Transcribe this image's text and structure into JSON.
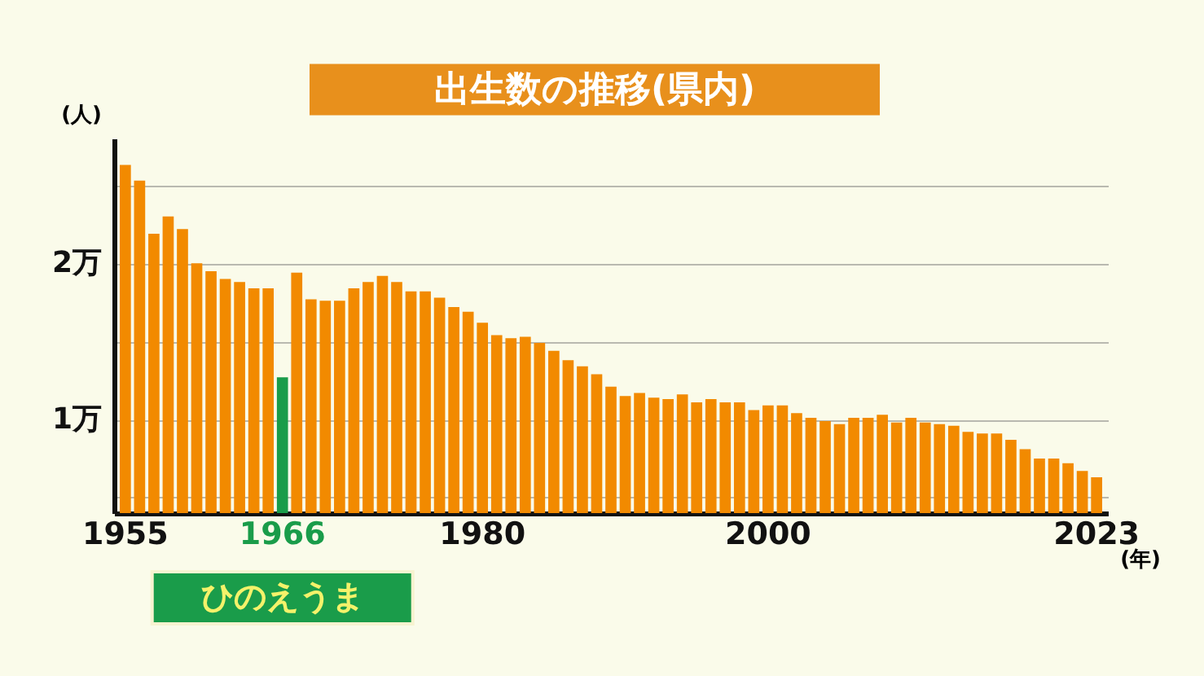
{
  "chart_data": {
    "type": "bar",
    "title": "出生数の推移(県内)",
    "ylabel": "(人)",
    "xlabel": "(年)",
    "categories": [
      "1955",
      null,
      null,
      null,
      null,
      null,
      null,
      null,
      null,
      null,
      null,
      "1966",
      null,
      null,
      null,
      null,
      null,
      null,
      null,
      null,
      null,
      null,
      null,
      null,
      null,
      "1980",
      null,
      null,
      null,
      null,
      null,
      null,
      null,
      null,
      null,
      null,
      null,
      null,
      null,
      null,
      null,
      null,
      null,
      null,
      null,
      "2000",
      null,
      null,
      null,
      null,
      null,
      null,
      null,
      null,
      null,
      null,
      null,
      null,
      null,
      null,
      null,
      null,
      null,
      null,
      null,
      null,
      null,
      null,
      "2023"
    ],
    "values": [
      2.63,
      2.53,
      2.19,
      2.3,
      2.22,
      2.0,
      1.95,
      1.9,
      1.88,
      1.84,
      1.84,
      1.27,
      1.94,
      1.77,
      1.76,
      1.76,
      1.84,
      1.88,
      1.92,
      1.88,
      1.82,
      1.82,
      1.78,
      1.72,
      1.69,
      1.62,
      1.54,
      1.52,
      1.53,
      1.49,
      1.44,
      1.38,
      1.34,
      1.29,
      1.21,
      1.15,
      1.17,
      1.14,
      1.13,
      1.16,
      1.11,
      1.13,
      1.11,
      1.11,
      1.06,
      1.09,
      1.09,
      1.04,
      1.01,
      0.99,
      0.97,
      1.01,
      1.01,
      1.03,
      0.98,
      1.01,
      0.98,
      0.97,
      0.96,
      0.92,
      0.91,
      0.91,
      0.87,
      0.81,
      0.75,
      0.75,
      0.72,
      0.67,
      0.63
    ],
    "colors": [
      "#f28a00",
      "#f28a00",
      "#f28a00",
      "#f28a00",
      "#f28a00",
      "#f28a00",
      "#f28a00",
      "#f28a00",
      "#f28a00",
      "#f28a00",
      "#f28a00",
      "#1a9c4a",
      "#f28a00",
      "#f28a00",
      "#f28a00",
      "#f28a00",
      "#f28a00",
      "#f28a00",
      "#f28a00",
      "#f28a00",
      "#f28a00",
      "#f28a00",
      "#f28a00",
      "#f28a00",
      "#f28a00",
      "#f28a00",
      "#f28a00",
      "#f28a00",
      "#f28a00",
      "#f28a00",
      "#f28a00",
      "#f28a00",
      "#f28a00",
      "#f28a00",
      "#f28a00",
      "#f28a00",
      "#f28a00",
      "#f28a00",
      "#f28a00",
      "#f28a00",
      "#f28a00",
      "#f28a00",
      "#f28a00",
      "#f28a00",
      "#f28a00",
      "#f28a00",
      "#f28a00",
      "#f28a00",
      "#f28a00",
      "#f28a00",
      "#f28a00",
      "#f28a00",
      "#f28a00",
      "#f28a00",
      "#f28a00",
      "#f28a00",
      "#f28a00",
      "#f28a00",
      "#f28a00",
      "#f28a00",
      "#f28a00",
      "#f28a00",
      "#f28a00",
      "#f28a00",
      "#f28a00",
      "#f28a00",
      "#f28a00",
      "#f28a00",
      "#f28a00"
    ],
    "ylim": [
      0.4,
      2.8
    ],
    "yticks": [
      {
        "value": 0.5,
        "label": null
      },
      {
        "value": 1,
        "label": "1万"
      },
      {
        "value": 1.5,
        "label": null
      },
      {
        "value": 2,
        "label": "2万"
      },
      {
        "value": 2.5,
        "label": null
      }
    ],
    "grid": "y",
    "annotations": [
      "ひのえうま"
    ]
  }
}
